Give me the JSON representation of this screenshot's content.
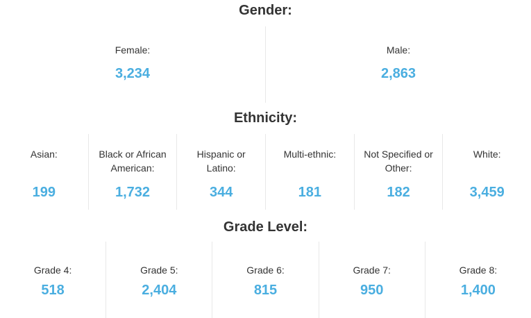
{
  "sections": [
    {
      "title": "Gender:",
      "items": [
        {
          "label": "Female:",
          "value": "3,234"
        },
        {
          "label": "Male:",
          "value": "2,863"
        }
      ]
    },
    {
      "title": "Ethnicity:",
      "items": [
        {
          "label": "Asian:",
          "value": "199"
        },
        {
          "label": "Black or African American:",
          "value": "1,732"
        },
        {
          "label": "Hispanic or Latino:",
          "value": "344"
        },
        {
          "label": "Multi-ethnic:",
          "value": "181"
        },
        {
          "label": "Not Specified or Other:",
          "value": "182"
        },
        {
          "label": "White:",
          "value": "3,459"
        }
      ]
    },
    {
      "title": "Grade Level:",
      "items": [
        {
          "label": "Grade 4:",
          "value": "518"
        },
        {
          "label": "Grade 5:",
          "value": "2,404"
        },
        {
          "label": "Grade 6:",
          "value": "815"
        },
        {
          "label": "Grade 7:",
          "value": "950"
        },
        {
          "label": "Grade 8:",
          "value": "1,400"
        }
      ]
    }
  ]
}
